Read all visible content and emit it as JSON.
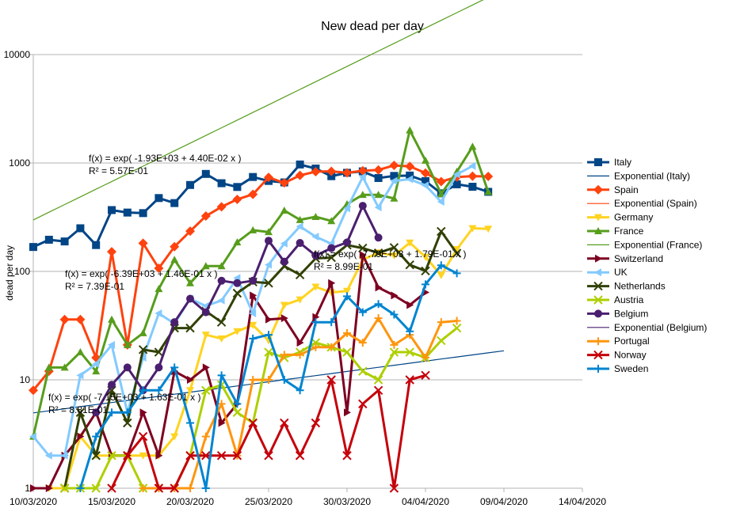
{
  "chart_data": {
    "type": "line",
    "title": "New dead per day",
    "xlabel": "",
    "ylabel": "dead per day",
    "y_scale": "log",
    "ylim": [
      1,
      10000
    ],
    "xlim": [
      "10/03/2020",
      "14/04/2020"
    ],
    "x_tick_labels": [
      "10/03/2020",
      "15/03/2020",
      "20/03/2020",
      "25/03/2020",
      "30/03/2020",
      "04/04/2020",
      "09/04/2020",
      "14/04/2020"
    ],
    "y_tick_labels": [
      "1",
      "10",
      "100",
      "1000",
      "10000"
    ],
    "grid": "horizontal",
    "legend_position": "right",
    "series": [
      {
        "name": "Italy",
        "color": "#004586",
        "marker": "square",
        "start_date": "10/03/2020",
        "values": [
          168,
          196,
          189,
          250,
          175,
          368,
          349,
          345,
          475,
          427,
          627,
          793,
          651,
          601,
          743,
          683,
          662,
          969,
          889,
          756,
          812,
          837,
          727,
          760,
          766,
          681,
          525,
          636,
          604,
          542
        ]
      },
      {
        "name": "Spain",
        "color": "#ff420e",
        "marker": "diamond",
        "start_date": "10/03/2020",
        "values": [
          8,
          12,
          36,
          36,
          16,
          152,
          21,
          182,
          107,
          169,
          235,
          324,
          394,
          462,
          514,
          738,
          655,
          769,
          832,
          838,
          812,
          849,
          864,
          950,
          932,
          809,
          674,
          743,
          757,
          752
        ]
      },
      {
        "name": "Germany",
        "color": "#ffd320",
        "marker": "triangle-down",
        "start_date": "11/03/2020",
        "values": [
          1,
          1,
          3,
          2,
          2,
          2,
          2,
          2,
          3,
          8,
          26,
          24,
          28,
          32,
          23,
          49,
          55,
          72,
          64,
          66,
          128,
          149,
          140,
          184,
          136,
          92,
          160,
          250,
          247
        ]
      },
      {
        "name": "France",
        "color": "#579d1c",
        "marker": "triangle-up",
        "start_date": "10/03/2020",
        "values": [
          3,
          13,
          13,
          18,
          12,
          36,
          21,
          27,
          69,
          128,
          78,
          112,
          112,
          186,
          240,
          231,
          365,
          299,
          319,
          292,
          418,
          509,
          509,
          471,
          2004,
          1053,
          518,
          833,
          1417,
          541
        ]
      },
      {
        "name": "Switzerland",
        "color": "#7e0021",
        "marker": "triangle-right",
        "start_date": "10/03/2020",
        "values": [
          1,
          1,
          2,
          3,
          5,
          2,
          2,
          5,
          2,
          12,
          10,
          13,
          4,
          6,
          60,
          36,
          37,
          22,
          38,
          78,
          5,
          142,
          71,
          60,
          49,
          64
        ]
      },
      {
        "name": "UK",
        "color": "#83caff",
        "marker": "triangle-left",
        "start_date": "10/03/2020",
        "values": [
          3,
          2,
          2,
          11,
          14,
          21,
          5,
          16,
          41,
          33,
          56,
          48,
          54,
          87,
          41,
          115,
          181,
          260,
          209,
          180,
          381,
          743,
          389,
          684,
          708,
          621,
          439,
          786,
          938
        ]
      },
      {
        "name": "Netherlands",
        "color": "#314004",
        "marker": "x",
        "start_date": "12/03/2020",
        "values": [
          1,
          5,
          2,
          8,
          4,
          19,
          18,
          30,
          30,
          43,
          34,
          63,
          80,
          78,
          112,
          93,
          132,
          134,
          175,
          164,
          148,
          166,
          115,
          101,
          234,
          147
        ]
      },
      {
        "name": "Austria",
        "color": "#aecf00",
        "marker": "x",
        "start_date": "12/03/2020",
        "values": [
          1,
          1,
          1,
          2,
          2,
          1,
          1,
          1,
          2,
          8,
          9,
          5,
          4,
          18,
          16,
          18,
          22,
          20,
          18,
          12,
          10,
          18,
          18,
          16,
          23,
          30
        ]
      },
      {
        "name": "Belgium",
        "color": "#4b1f6f",
        "marker": "circle",
        "start_date": "14/03/2020",
        "values": [
          5,
          9,
          13,
          8,
          13,
          34,
          56,
          42,
          82,
          78,
          82,
          192,
          123,
          183,
          140,
          164,
          185,
          403,
          205
        ]
      },
      {
        "name": "Portugal",
        "color": "#ff950e",
        "marker": "plus",
        "start_date": "17/03/2020",
        "values": [
          1,
          1,
          1,
          1,
          3,
          6,
          2,
          10,
          10,
          17,
          17,
          20,
          20,
          27,
          22,
          37,
          21,
          26,
          16,
          34,
          35
        ]
      },
      {
        "name": "Norway",
        "color": "#c5000b",
        "marker": "x",
        "start_date": "15/03/2020",
        "values": [
          1,
          2,
          3,
          1,
          1,
          2,
          2,
          2,
          2,
          4,
          2,
          4,
          2,
          4,
          10,
          2,
          6,
          8,
          1,
          10,
          11
        ]
      },
      {
        "name": "Sweden",
        "color": "#0084d1",
        "marker": "plus",
        "start_date": "13/03/2020",
        "values": [
          1,
          3,
          5,
          5,
          8,
          8,
          13,
          4,
          1,
          11,
          6,
          24,
          26,
          10,
          8,
          34,
          34,
          59,
          42,
          50,
          40,
          28,
          76,
          114,
          96
        ]
      }
    ],
    "trendlines": [
      {
        "name": "Exponential (Italy)",
        "color": "#004586",
        "a": -1930,
        "b": 0.044,
        "x0": "10/03/2020",
        "x1": "09/04/2020"
      },
      {
        "name": "Exponential (Spain)",
        "color": "#ff420e",
        "a": -6390,
        "b": 0.146,
        "x0": "10/03/2020",
        "x1": "09/04/2020"
      },
      {
        "name": "Exponential (France)",
        "color": "#579d1c",
        "a": -7150,
        "b": 0.163,
        "x0": "10/03/2020",
        "x1": "09/04/2020"
      },
      {
        "name": "Exponential (Belgium)",
        "color": "#4b1f6f",
        "a": -7790,
        "b": 0.179,
        "x0": "14/03/2020",
        "x1": "09/04/2020"
      }
    ],
    "annotations": [
      {
        "line1": "f(x) = exp( -1.93E+03 + 4.40E-02 x )",
        "line2": "R² = 5.57E-01"
      },
      {
        "line1": "f(x) = exp( -6.39E+03 + 1.46E-01 x )",
        "line2": "R² = 7.39E-01"
      },
      {
        "line1": "f(x) = exp( -7.79E+03 + 1.79E-01 x )",
        "line2": "R² = 8.99E-01"
      },
      {
        "line1": "f(x) = exp( -7.15E+03 + 1.63E-01 x )",
        "line2": "R² = 8.81E-01"
      }
    ],
    "legend": [
      "Italy",
      "Exponential (Italy)",
      "Spain",
      "Exponential (Spain)",
      "Germany",
      "France",
      "Exponential (France)",
      "Switzerland",
      "UK",
      "Netherlands",
      "Austria",
      "Belgium",
      "Exponential (Belgium)",
      "Portugal",
      "Norway",
      "Sweden"
    ]
  }
}
